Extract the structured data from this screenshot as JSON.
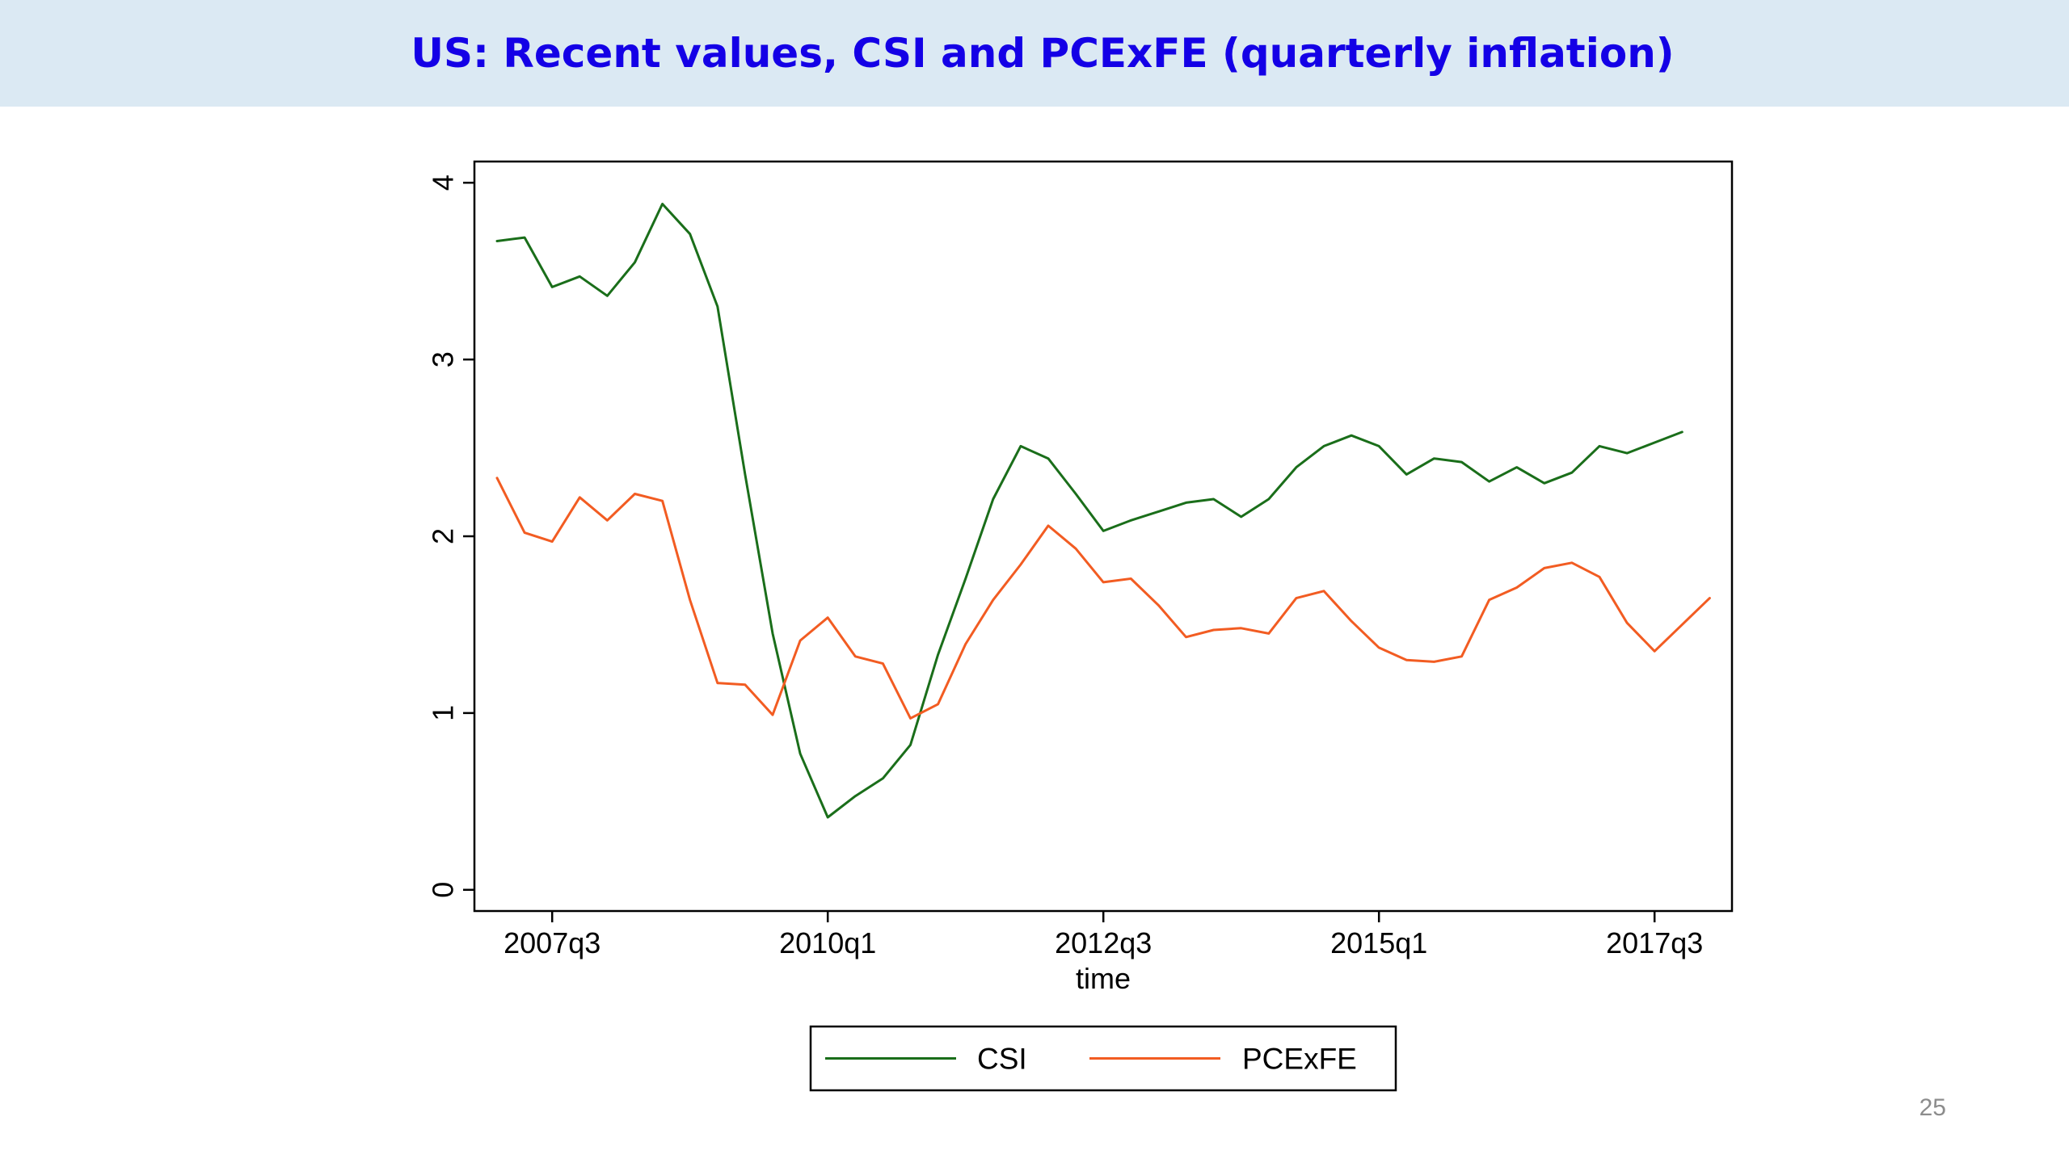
{
  "slide": {
    "title": "US: Recent values, CSI and PCExFE (quarterly inflation)",
    "page_number": "25",
    "title_color": "#1400e6",
    "title_bar_color": "#dbe9f3"
  },
  "chart_data": {
    "type": "line",
    "title": "",
    "xlabel": "time",
    "ylabel": "",
    "x": [
      "2007q1",
      "2007q2",
      "2007q3",
      "2007q4",
      "2008q1",
      "2008q2",
      "2008q3",
      "2008q4",
      "2009q1",
      "2009q2",
      "2009q3",
      "2009q4",
      "2010q1",
      "2010q2",
      "2010q3",
      "2010q4",
      "2011q1",
      "2011q2",
      "2011q3",
      "2011q4",
      "2012q1",
      "2012q2",
      "2012q3",
      "2012q4",
      "2013q1",
      "2013q2",
      "2013q3",
      "2013q4",
      "2014q1",
      "2014q2",
      "2014q3",
      "2014q4",
      "2015q1",
      "2015q2",
      "2015q3",
      "2015q4",
      "2016q1",
      "2016q2",
      "2016q3",
      "2016q4",
      "2017q1",
      "2017q2",
      "2017q3",
      "2017q4",
      "2018q1",
      "2018q2"
    ],
    "xticks": [
      "2007q3",
      "2010q1",
      "2012q3",
      "2015q1",
      "2017q3"
    ],
    "yticks": [
      0,
      1,
      2,
      3,
      4
    ],
    "ylim": [
      -0.12,
      4.12
    ],
    "series": [
      {
        "name": "CSI",
        "color": "#1a6e1a",
        "values": [
          3.67,
          3.69,
          3.41,
          3.47,
          3.36,
          3.55,
          3.88,
          3.71,
          3.3,
          2.35,
          1.45,
          0.77,
          0.41,
          0.53,
          0.63,
          0.82,
          1.33,
          1.76,
          2.21,
          2.51,
          2.44,
          2.24,
          2.03,
          2.09,
          2.14,
          2.19,
          2.21,
          2.11,
          2.21,
          2.39,
          2.51,
          2.57,
          2.51,
          2.35,
          2.44,
          2.42,
          2.31,
          2.39,
          2.3,
          2.36,
          2.51,
          2.47,
          2.53,
          2.59,
          null,
          null
        ]
      },
      {
        "name": "PCExFE",
        "color": "#f25c22",
        "values": [
          2.33,
          2.02,
          1.97,
          2.22,
          2.09,
          2.24,
          2.2,
          1.64,
          1.17,
          1.16,
          0.99,
          1.41,
          1.54,
          1.32,
          1.28,
          0.97,
          1.05,
          1.39,
          1.64,
          1.84,
          2.06,
          1.93,
          1.74,
          1.76,
          1.61,
          1.43,
          1.47,
          1.48,
          1.45,
          1.65,
          1.69,
          1.52,
          1.37,
          1.3,
          1.29,
          1.32,
          1.64,
          1.71,
          1.82,
          1.85,
          1.77,
          1.51,
          1.35,
          1.5,
          1.65,
          null
        ]
      }
    ],
    "legend": {
      "position": "bottom",
      "entries": [
        "CSI",
        "PCExFE"
      ]
    },
    "grid": false
  }
}
